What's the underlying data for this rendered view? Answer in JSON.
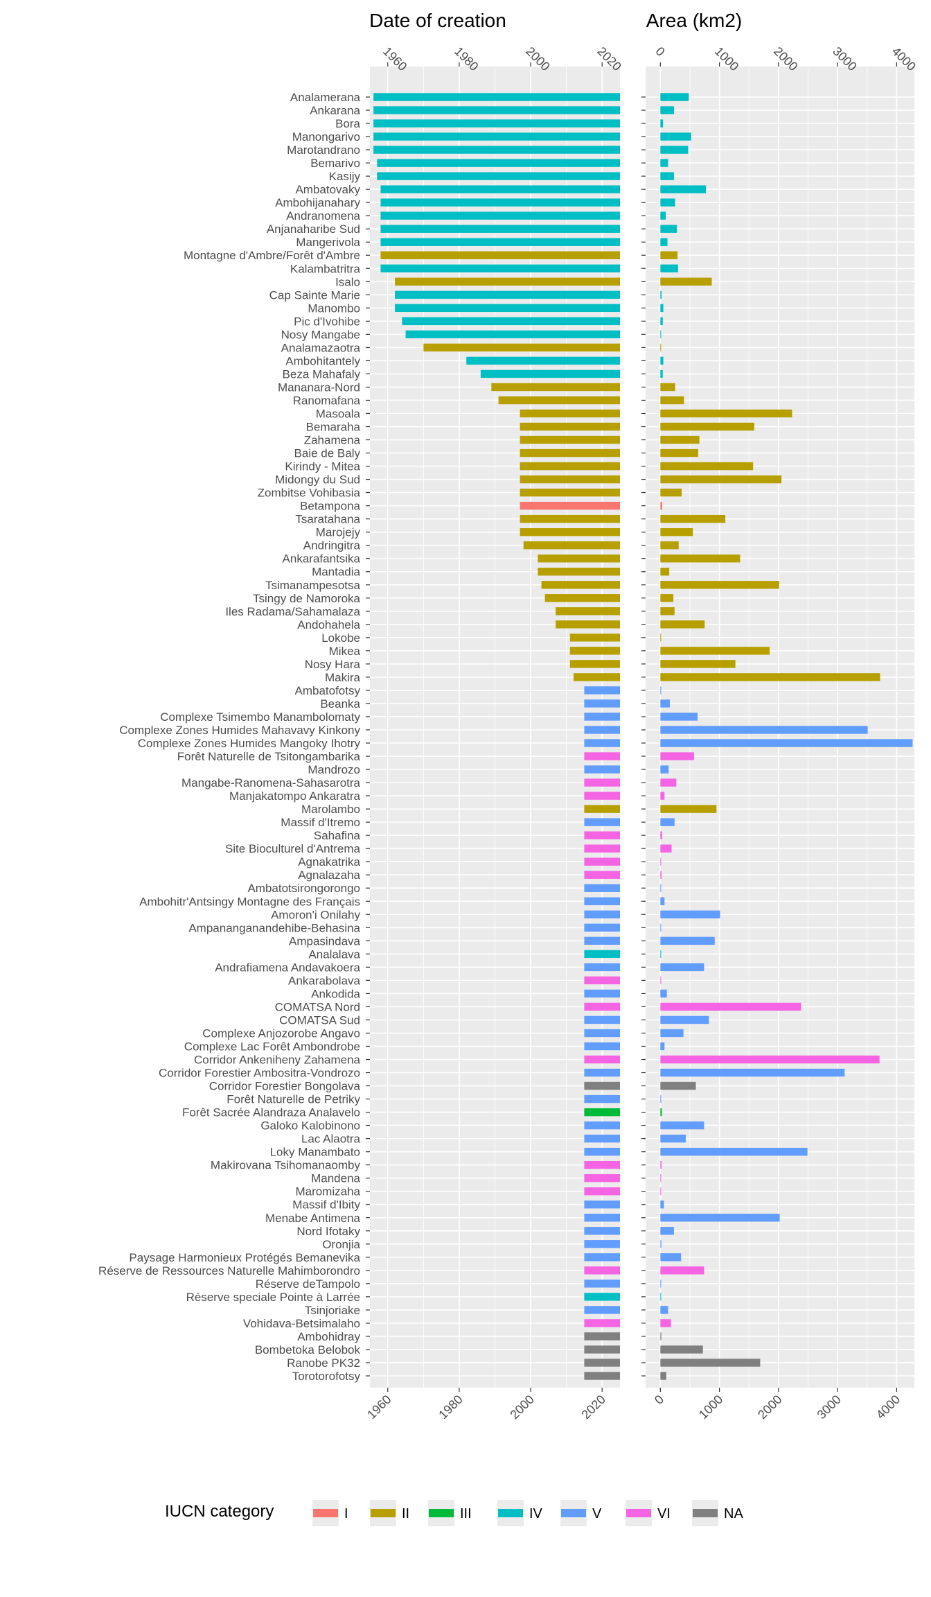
{
  "chart_data": {
    "type": "bar",
    "orientation": "horizontal",
    "facets": [
      {
        "title": "Date of creation",
        "xlim": [
          1955,
          2025
        ],
        "ticks": [
          1960,
          1980,
          2000,
          2020
        ],
        "bar_from_start": false
      },
      {
        "title": "Area (km2)",
        "xlim": [
          -250,
          4300
        ],
        "ticks": [
          0,
          1000,
          2000,
          3000,
          4000
        ],
        "bar_from_start": true
      }
    ],
    "legend": {
      "title": "IUCN category",
      "position": "bottom",
      "entries": [
        {
          "label": "I",
          "color": "#F8766D"
        },
        {
          "label": "II",
          "color": "#B79F00"
        },
        {
          "label": "III",
          "color": "#00BA38"
        },
        {
          "label": "IV",
          "color": "#00BFC4"
        },
        {
          "label": "V",
          "color": "#619CFF"
        },
        {
          "label": "VI",
          "color": "#F564E3"
        },
        {
          "label": "NA",
          "color": "#808080"
        }
      ]
    },
    "categories": [
      "Analamerana",
      "Ankarana",
      "Bora",
      "Manongarivo",
      "Marotandrano",
      "Bemarivo",
      "Kasijy",
      "Ambatovaky",
      "Ambohijanahary",
      "Andranomena",
      "Anjanaharibe Sud",
      "Mangerivola",
      "Montagne d'Ambre/Forêt d'Ambre",
      "Kalambatritra",
      "Isalo",
      "Cap Sainte Marie",
      "Manombo",
      "Pic d'Ivohibe",
      "Nosy Mangabe",
      "Analamazaotra",
      "Ambohitantely",
      "Beza Mahafaly",
      "Mananara-Nord",
      "Ranomafana",
      "Masoala",
      "Bemaraha",
      "Zahamena",
      "Baie de Baly",
      "Kirindy - Mitea",
      "Midongy du Sud",
      "Zombitse Vohibasia",
      "Betampona",
      "Tsaratahana",
      "Marojejy",
      "Andringitra",
      "Ankarafantsika",
      "Mantadia",
      "Tsimanampesotsa",
      "Tsingy de Namoroka",
      "Iles Radama/Sahamalaza",
      "Andohahela",
      "Lokobe",
      "Mikea",
      "Nosy Hara",
      "Makira",
      "Ambatofotsy",
      "Beanka",
      "Complexe Tsimembo Manambolomaty",
      "Complexe Zones Humides Mahavavy Kinkony",
      "Complexe Zones Humides Mangoky Ihotry",
      "Forêt Naturelle de Tsitongambarika",
      "Mandrozo",
      "Mangabe-Ranomena-Sahasarotra",
      "Manjakatompo Ankaratra",
      "Marolambo",
      "Massif d'Itremo",
      "Sahafina",
      "Site Bioculturel d'Antrema",
      "Agnakatrika",
      "Agnalazaha",
      "Ambatotsirongorongo",
      "Ambohitr'Antsingy Montagne des Français",
      "Amoron'i Onilahy",
      "Ampananganandehibe-Behasina",
      "Ampasindava",
      "Analalava",
      "Andrafiamena Andavakoera",
      "Ankarabolava",
      "Ankodida",
      "COMATSA Nord",
      "COMATSA Sud",
      "Complexe Anjozorobe Angavo",
      "Complexe Lac Forêt Ambondrobe",
      "Corridor Ankeniheny Zahamena",
      "Corridor Forestier Ambositra-Vondrozo",
      "Corridor Forestier Bongolava",
      "Forêt Naturelle de Petriky",
      "Forêt Sacrée Alandraza Analavelo",
      "Galoko Kalobinono",
      "Lac Alaotra",
      "Loky Manambato",
      "Makirovana Tsihomanaomby",
      "Mandena",
      "Maromizaha",
      "Massif d'Ibity",
      "Menabe Antimena",
      "Nord Ifotaky",
      "Oronjia",
      "Paysage Harmonieux Protégés Bemanevika",
      "Réserve de Ressources Naturelle Mahimborondro",
      "Réserve deTampolo",
      "Réserve speciale Pointe à Larrée",
      "Tsinjoriake",
      "Vohidava-Betsimalaho",
      "Ambohidray",
      "Bombetoka Belobok",
      "Ranobe PK32",
      "Torotorofotsy"
    ],
    "iucn": [
      "IV",
      "IV",
      "IV",
      "IV",
      "IV",
      "IV",
      "IV",
      "IV",
      "IV",
      "IV",
      "IV",
      "IV",
      "II",
      "IV",
      "II",
      "IV",
      "IV",
      "IV",
      "IV",
      "II",
      "IV",
      "IV",
      "II",
      "II",
      "II",
      "II",
      "II",
      "II",
      "II",
      "II",
      "II",
      "I",
      "II",
      "II",
      "II",
      "II",
      "II",
      "II",
      "II",
      "II",
      "II",
      "II",
      "II",
      "II",
      "II",
      "V",
      "V",
      "V",
      "V",
      "V",
      "VI",
      "V",
      "VI",
      "VI",
      "II",
      "V",
      "VI",
      "VI",
      "VI",
      "VI",
      "V",
      "V",
      "V",
      "V",
      "V",
      "IV",
      "V",
      "VI",
      "V",
      "VI",
      "V",
      "V",
      "V",
      "VI",
      "V",
      "NA",
      "V",
      "III",
      "V",
      "V",
      "V",
      "VI",
      "VI",
      "VI",
      "V",
      "V",
      "V",
      "V",
      "V",
      "VI",
      "V",
      "IV",
      "V",
      "VI",
      "NA",
      "NA",
      "NA",
      "NA"
    ],
    "series": [
      {
        "name": "Date of creation",
        "values": [
          1956,
          1956,
          1956,
          1956,
          1956,
          1957,
          1957,
          1958,
          1958,
          1958,
          1958,
          1958,
          1958,
          1958,
          1962,
          1962,
          1962,
          1964,
          1965,
          1970,
          1982,
          1986,
          1989,
          1991,
          1997,
          1997,
          1997,
          1997,
          1997,
          1997,
          1997,
          1997,
          1997,
          1997,
          1998,
          2002,
          2002,
          2003,
          2004,
          2007,
          2007,
          2011,
          2011,
          2011,
          2012,
          2015,
          2015,
          2015,
          2015,
          2015,
          2015,
          2015,
          2015,
          2015,
          2015,
          2015,
          2015,
          2015,
          2015,
          2015,
          2015,
          2015,
          2015,
          2015,
          2015,
          2015,
          2015,
          2015,
          2015,
          2015,
          2015,
          2015,
          2015,
          2015,
          2015,
          2015,
          2015,
          2015,
          2015,
          2015,
          2015,
          2015,
          2015,
          2015,
          2015,
          2015,
          2015,
          2015,
          2015,
          2015,
          2015,
          2015,
          2015,
          2015,
          2015,
          2015,
          2015,
          2015
        ]
      },
      {
        "name": "Area (km2)",
        "values": [
          480,
          230,
          45,
          520,
          470,
          130,
          230,
          770,
          250,
          90,
          280,
          120,
          290,
          300,
          870,
          20,
          50,
          40,
          6,
          8,
          50,
          40,
          250,
          400,
          2230,
          1590,
          660,
          640,
          1570,
          2050,
          360,
          30,
          1100,
          550,
          310,
          1350,
          150,
          2010,
          220,
          240,
          750,
          9,
          1850,
          1270,
          3720,
          7,
          160,
          630,
          3510,
          4270,
          570,
          140,
          270,
          70,
          950,
          240,
          30,
          190,
          10,
          20,
          10,
          70,
          1010,
          7,
          920,
          5,
          740,
          10,
          110,
          2380,
          820,
          390,
          70,
          3710,
          3120,
          600,
          3,
          25,
          740,
          430,
          2490,
          20,
          4,
          5,
          60,
          2020,
          230,
          15,
          350,
          740,
          4,
          4,
          130,
          180,
          15,
          720,
          1690,
          100
        ]
      }
    ]
  }
}
